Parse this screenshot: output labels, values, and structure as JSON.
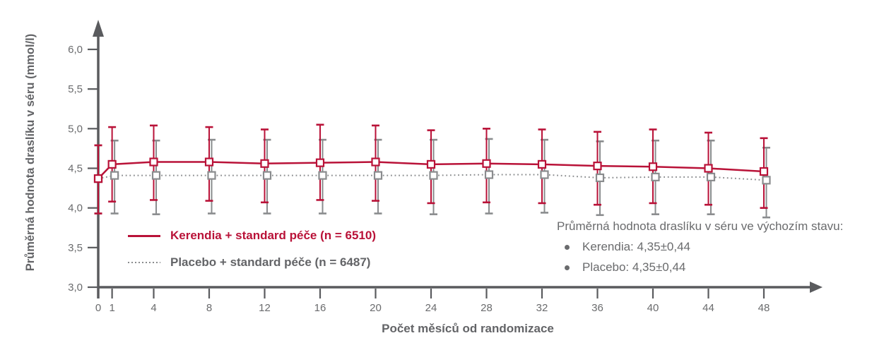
{
  "colors": {
    "kerendia": "#b91238",
    "placebo": "#8a8c8e",
    "axis": "#5a5b5e",
    "tick_text": "#6a6b6d",
    "label_text": "#636467"
  },
  "annotation": {
    "title": "Průměrná hodnota draslíku v séru ve výchozím stavu:",
    "items": [
      "Kerendia: 4,35±0,44",
      "Placebo: 4,35±0,44"
    ]
  },
  "chart_data": {
    "type": "line",
    "title": "",
    "xlabel": "Počet měsíců od randomizace",
    "ylabel": "Průměrná hodnota draslíku v séru (mmol/l)",
    "x": [
      0,
      1,
      4,
      8,
      12,
      16,
      20,
      24,
      28,
      32,
      36,
      40,
      44,
      48
    ],
    "xtick_labels": [
      "0",
      "1",
      "4",
      "8",
      "12",
      "16",
      "20",
      "24",
      "28",
      "32",
      "36",
      "40",
      "44",
      "48"
    ],
    "xlim": [
      0,
      51
    ],
    "ylim": [
      3.0,
      6.0
    ],
    "ytick_values": [
      3.0,
      3.5,
      4.0,
      4.5,
      5.0,
      5.5,
      6.0
    ],
    "ytick_labels": [
      "3,0",
      "3,5",
      "4,0",
      "4,5",
      "5,0",
      "5,5",
      "6,0"
    ],
    "grid": false,
    "legend_position": "inside-bottom-left",
    "series": [
      {
        "name": "placebo",
        "label": "Placebo + standard péče (n = 6487)",
        "color": "#8a8c8e",
        "style": "dotted",
        "marker": "open-square",
        "values": [
          4.37,
          4.41,
          4.41,
          4.41,
          4.41,
          4.41,
          4.41,
          4.41,
          4.42,
          4.42,
          4.38,
          4.39,
          4.39,
          4.35
        ],
        "upper": [
          4.79,
          4.85,
          4.85,
          4.86,
          4.86,
          4.86,
          4.86,
          4.86,
          4.87,
          4.86,
          4.84,
          4.85,
          4.85,
          4.76
        ],
        "lower": [
          3.93,
          3.93,
          3.92,
          3.93,
          3.93,
          3.93,
          3.93,
          3.92,
          3.93,
          3.94,
          3.91,
          3.92,
          3.92,
          3.88
        ],
        "baseline_stat": "4,35±0,44"
      },
      {
        "name": "kerendia",
        "label": "Kerendia + standard péče (n = 6510)",
        "color": "#b91238",
        "style": "solid",
        "marker": "open-square",
        "values": [
          4.37,
          4.55,
          4.58,
          4.58,
          4.56,
          4.57,
          4.58,
          4.55,
          4.56,
          4.55,
          4.53,
          4.52,
          4.5,
          4.46
        ],
        "upper": [
          4.79,
          5.02,
          5.04,
          5.02,
          4.99,
          5.05,
          5.04,
          4.98,
          5.0,
          4.99,
          4.96,
          4.99,
          4.95,
          4.88
        ],
        "lower": [
          3.93,
          4.08,
          4.1,
          4.09,
          4.07,
          4.1,
          4.09,
          4.06,
          4.07,
          4.06,
          4.04,
          4.06,
          4.04,
          4.0
        ],
        "baseline_stat": "4,35±0,44"
      }
    ]
  }
}
